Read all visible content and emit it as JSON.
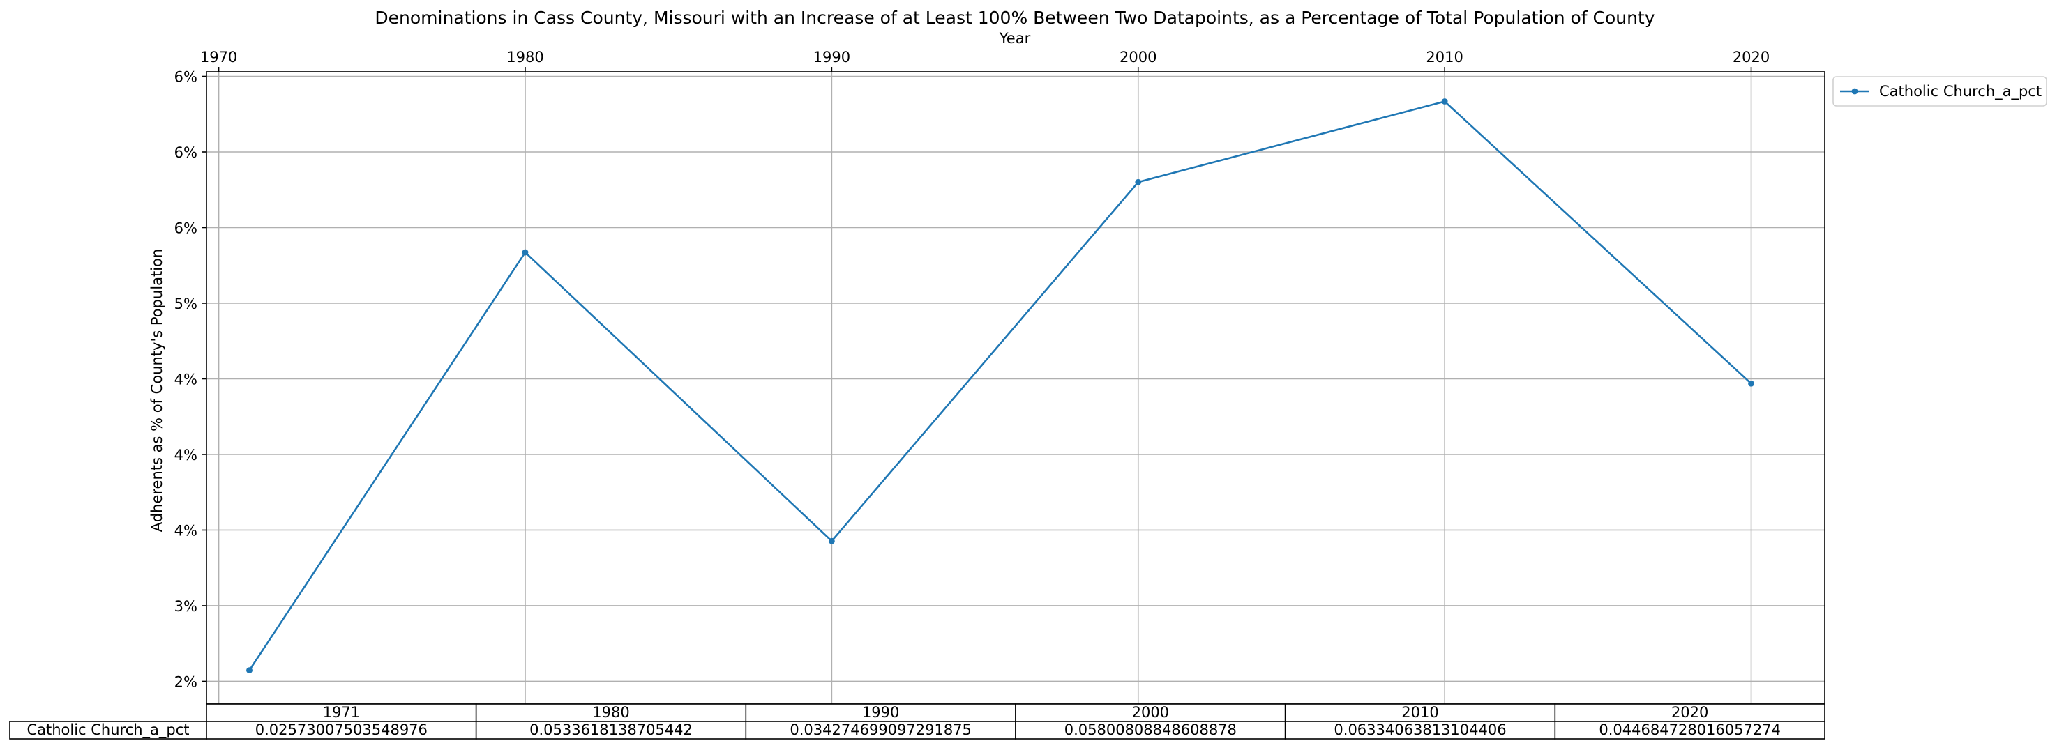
{
  "chart_data": {
    "type": "line",
    "title": "Denominations in Cass County, Missouri with an Increase of at Least 100% Between Two Datapoints, as a Percentage of Total Population of County",
    "xlabel": "Year",
    "ylabel": "Adherents as % of County's Population",
    "x": [
      1971,
      1980,
      1990,
      2000,
      2010,
      2020
    ],
    "xlim": [
      1969.6,
      2022.4
    ],
    "x_ticks": [
      1970,
      1980,
      1990,
      2000,
      2010,
      2020
    ],
    "ylim": [
      0.0235,
      0.0653
    ],
    "y_ticks": [
      0.025,
      0.03,
      0.035,
      0.04,
      0.045,
      0.05,
      0.055,
      0.06,
      0.065
    ],
    "y_tick_labels": [
      "2%",
      "3%",
      "4%",
      "4%",
      "4%",
      "5%",
      "6%",
      "6%",
      "6%"
    ],
    "x_axis_position": "top",
    "grid": true,
    "legend_position": "outside-top-right",
    "series": [
      {
        "name": "Catholic Church_a_pct",
        "color": "#1f77b4",
        "values": [
          0.02573007503548976,
          0.0533618138705442,
          0.03427469909729187,
          0.05800808848608878,
          0.06334063813104406,
          0.044684728016057274
        ]
      }
    ],
    "table": {
      "col_labels": [
        "1971",
        "1980",
        "1990",
        "2000",
        "2010",
        "2020"
      ],
      "rows": [
        {
          "label": "Catholic Church_a_pct",
          "cells": [
            "0.02573007503548976",
            "0.0533618138705442",
            "0.034274699097291875",
            "0.05800808848608878",
            "0.06334063813104406",
            "0.044684728016057274"
          ]
        }
      ]
    }
  }
}
